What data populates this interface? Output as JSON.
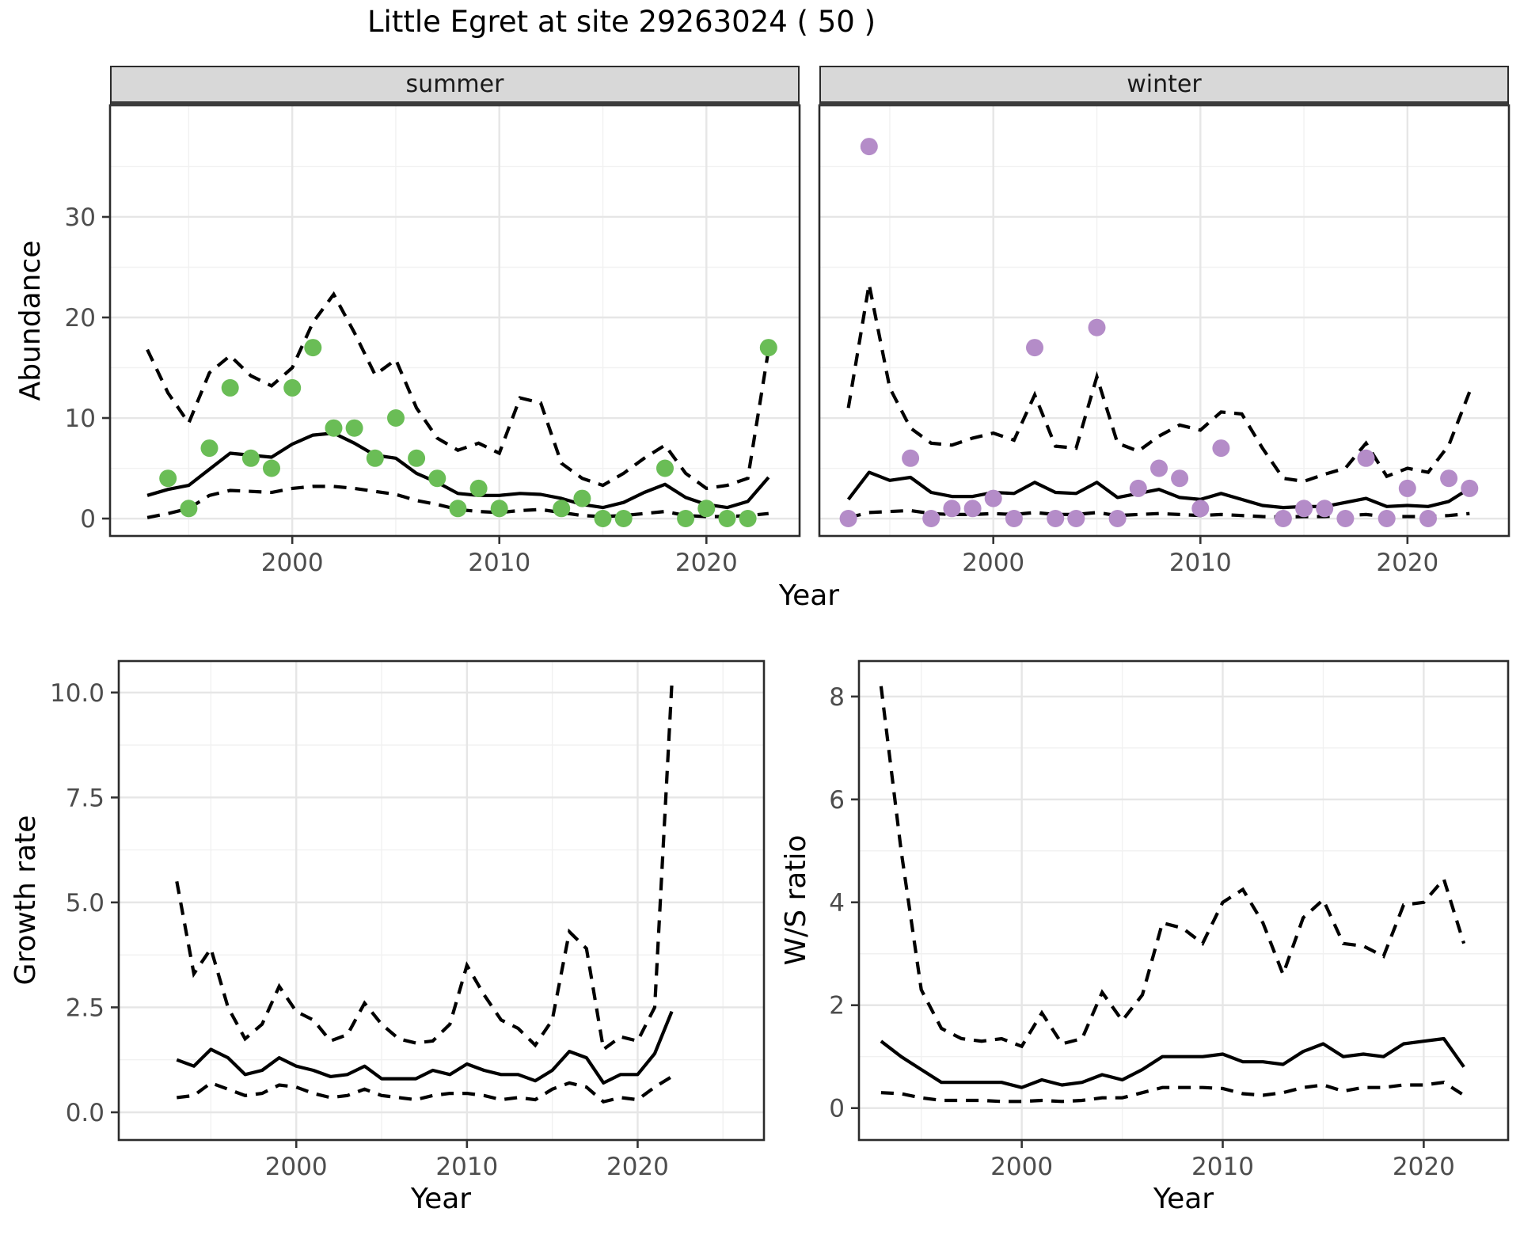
{
  "title": "Little Egret at site 29263024 ( 50 )",
  "labels": {
    "year": "Year",
    "abundance": "Abundance",
    "growth_rate": "Growth rate",
    "ws_ratio": "W/S ratio"
  },
  "facets": {
    "summer": "summer",
    "winter": "winter"
  },
  "colors": {
    "summer_point": "#6ABD56",
    "winter_point": "#B48CC8",
    "line": "#000000",
    "ci_line": "#000000",
    "strip_bg": "#D8D8D8",
    "panel_border": "#2b2b2b",
    "grid_major": "#E6E6E6",
    "grid_minor": "#F1F1F1",
    "tick_label": "#4d4d4d"
  },
  "chart_data": [
    {
      "id": "abundance-summer",
      "type": "line",
      "facet": "summer",
      "xlabel": "Year",
      "ylabel": "Abundance",
      "legend_position": "none",
      "grid": true,
      "xlim": [
        1991.2,
        2024.5
      ],
      "ylim": [
        -1.73,
        41.1
      ],
      "x_breaks": [
        2000,
        2010,
        2020
      ],
      "x_break_labels": [
        "2000",
        "2010",
        "2020"
      ],
      "y_breaks": [
        0,
        10,
        20,
        30
      ],
      "y_break_labels": [
        "0",
        "10",
        "20",
        "30"
      ],
      "years": [
        1993,
        1994,
        1995,
        1996,
        1997,
        1998,
        1999,
        2000,
        2001,
        2002,
        2003,
        2004,
        2005,
        2006,
        2007,
        2008,
        2009,
        2010,
        2011,
        2012,
        2013,
        2014,
        2015,
        2016,
        2017,
        2018,
        2019,
        2020,
        2021,
        2022,
        2023
      ],
      "fitted": [
        2.3,
        2.9,
        3.3,
        4.9,
        6.5,
        6.3,
        6.1,
        7.4,
        8.3,
        8.5,
        7.5,
        6.3,
        6.0,
        4.5,
        3.6,
        2.5,
        2.3,
        2.3,
        2.5,
        2.4,
        2.0,
        1.4,
        1.1,
        1.6,
        2.6,
        3.4,
        2.1,
        1.4,
        1.1,
        1.7,
        4.1
      ],
      "upper_ci": [
        16.8,
        12.5,
        9.5,
        14.5,
        16.2,
        14.2,
        13.2,
        15.0,
        19.5,
        22.3,
        18.5,
        14.3,
        15.8,
        11.0,
        8.0,
        6.8,
        7.5,
        6.5,
        12.0,
        11.5,
        5.5,
        4.0,
        3.3,
        4.5,
        6.0,
        7.3,
        4.5,
        3.0,
        3.3,
        4.0,
        16.8
      ],
      "lower_ci": [
        0.1,
        0.5,
        1.0,
        2.3,
        2.8,
        2.7,
        2.6,
        3.0,
        3.2,
        3.2,
        3.0,
        2.7,
        2.4,
        1.8,
        1.4,
        0.9,
        0.7,
        0.6,
        0.8,
        0.9,
        0.6,
        0.3,
        0.2,
        0.3,
        0.5,
        0.7,
        0.3,
        0.2,
        0.2,
        0.3,
        0.5
      ],
      "obs_years": [
        1994,
        1995,
        1996,
        1997,
        1998,
        1999,
        2000,
        2001,
        2002,
        2003,
        2004,
        2005,
        2006,
        2007,
        2008,
        2009,
        2010,
        2013,
        2014,
        2015,
        2016,
        2018,
        2019,
        2020,
        2021,
        2022,
        2023
      ],
      "obs_values": [
        4,
        1,
        7,
        13,
        6,
        5,
        13,
        17,
        9,
        9,
        6,
        10,
        6,
        4,
        1,
        3,
        1,
        1,
        2,
        0,
        0,
        5,
        0,
        1,
        0,
        0,
        17
      ],
      "point_color": "#6ABD56"
    },
    {
      "id": "abundance-winter",
      "type": "line",
      "facet": "winter",
      "xlabel": "Year",
      "ylabel": "Abundance",
      "legend_position": "none",
      "grid": true,
      "xlim": [
        1991.6,
        2024.9
      ],
      "ylim": [
        -1.73,
        41.1
      ],
      "x_breaks": [
        2000,
        2010,
        2020
      ],
      "x_break_labels": [
        "2000",
        "2010",
        "2020"
      ],
      "y_breaks": [
        0,
        10,
        20,
        30
      ],
      "y_break_labels": [
        "0",
        "10",
        "20",
        "30"
      ],
      "years": [
        1993,
        1994,
        1995,
        1996,
        1997,
        1998,
        1999,
        2000,
        2001,
        2002,
        2003,
        2004,
        2005,
        2006,
        2007,
        2008,
        2009,
        2010,
        2011,
        2012,
        2013,
        2014,
        2015,
        2016,
        2017,
        2018,
        2019,
        2020,
        2021,
        2022,
        2023
      ],
      "fitted": [
        1.9,
        4.6,
        3.8,
        4.1,
        2.6,
        2.2,
        2.2,
        2.6,
        2.5,
        3.6,
        2.6,
        2.5,
        3.6,
        2.1,
        2.5,
        2.9,
        2.1,
        1.9,
        2.5,
        1.9,
        1.3,
        1.1,
        1.2,
        1.2,
        1.6,
        2.0,
        1.2,
        1.3,
        1.2,
        1.7,
        3.0
      ],
      "upper_ci": [
        11.0,
        23.3,
        13.0,
        9.0,
        7.5,
        7.3,
        8.0,
        8.5,
        7.8,
        12.3,
        7.2,
        7.0,
        14.1,
        7.5,
        6.7,
        8.2,
        9.3,
        8.8,
        10.6,
        10.4,
        7.0,
        4.0,
        3.7,
        4.4,
        5.0,
        7.5,
        4.2,
        5.0,
        4.6,
        7.3,
        12.6
      ],
      "lower_ci": [
        0.1,
        0.6,
        0.7,
        0.8,
        0.5,
        0.4,
        0.4,
        0.5,
        0.4,
        0.6,
        0.4,
        0.4,
        0.6,
        0.3,
        0.4,
        0.5,
        0.4,
        0.3,
        0.4,
        0.3,
        0.2,
        0.15,
        0.2,
        0.2,
        0.3,
        0.4,
        0.2,
        0.2,
        0.2,
        0.3,
        0.5
      ],
      "obs_years": [
        1993,
        1994,
        1996,
        1997,
        1998,
        1999,
        2000,
        2001,
        2002,
        2003,
        2004,
        2005,
        2006,
        2007,
        2008,
        2009,
        2010,
        2011,
        2014,
        2015,
        2016,
        2017,
        2018,
        2019,
        2020,
        2021,
        2022,
        2023
      ],
      "obs_values": [
        0,
        37,
        6,
        0,
        1,
        1,
        2,
        0,
        17,
        0,
        0,
        19,
        0,
        3,
        5,
        4,
        1,
        7,
        0,
        1,
        1,
        0,
        6,
        0,
        3,
        0,
        4,
        3
      ],
      "point_color": "#B48CC8"
    },
    {
      "id": "growth-rate",
      "type": "line",
      "facet": null,
      "xlabel": "Year",
      "ylabel": "Growth rate",
      "legend_position": "none",
      "grid": true,
      "xlim": [
        1989.6,
        2027.4
      ],
      "ylim": [
        -0.66,
        10.75
      ],
      "x_breaks": [
        2000,
        2010,
        2020
      ],
      "x_break_labels": [
        "2000",
        "2010",
        "2020"
      ],
      "y_breaks": [
        0,
        2.5,
        5,
        7.5,
        10
      ],
      "y_break_labels": [
        "0.0",
        "2.5",
        "5.0",
        "7.5",
        "10.0"
      ],
      "years": [
        1993,
        1994,
        1995,
        1996,
        1997,
        1998,
        1999,
        2000,
        2001,
        2002,
        2003,
        2004,
        2005,
        2006,
        2007,
        2008,
        2009,
        2010,
        2011,
        2012,
        2013,
        2014,
        2015,
        2016,
        2017,
        2018,
        2019,
        2020,
        2021,
        2022
      ],
      "fitted": [
        1.25,
        1.1,
        1.5,
        1.3,
        0.9,
        1.0,
        1.3,
        1.1,
        1.0,
        0.85,
        0.9,
        1.1,
        0.8,
        0.8,
        0.8,
        1.0,
        0.9,
        1.15,
        1.0,
        0.9,
        0.9,
        0.75,
        1.0,
        1.45,
        1.3,
        0.7,
        0.9,
        0.9,
        1.4,
        2.4
      ],
      "upper_ci": [
        5.5,
        3.3,
        3.9,
        2.5,
        1.75,
        2.1,
        3.0,
        2.4,
        2.2,
        1.7,
        1.85,
        2.6,
        2.1,
        1.75,
        1.65,
        1.7,
        2.1,
        3.5,
        2.8,
        2.2,
        2.0,
        1.6,
        2.2,
        4.3,
        3.9,
        1.5,
        1.8,
        1.7,
        2.5,
        10.2
      ],
      "lower_ci": [
        0.35,
        0.4,
        0.7,
        0.55,
        0.4,
        0.45,
        0.65,
        0.6,
        0.45,
        0.35,
        0.4,
        0.55,
        0.4,
        0.35,
        0.3,
        0.4,
        0.45,
        0.45,
        0.4,
        0.3,
        0.35,
        0.3,
        0.55,
        0.7,
        0.6,
        0.25,
        0.35,
        0.3,
        0.6,
        0.85
      ],
      "obs_years": [],
      "obs_values": [],
      "point_color": null
    },
    {
      "id": "ws-ratio",
      "type": "line",
      "facet": null,
      "xlabel": "Year",
      "ylabel": "W/S ratio",
      "legend_position": "none",
      "grid": true,
      "xlim": [
        1991.9,
        2024.2
      ],
      "ylim": [
        -0.62,
        8.69
      ],
      "x_breaks": [
        2000,
        2010,
        2020
      ],
      "x_break_labels": [
        "2000",
        "2010",
        "2020"
      ],
      "y_breaks": [
        0,
        2,
        4,
        6,
        8
      ],
      "y_break_labels": [
        "0",
        "2",
        "4",
        "6",
        "8"
      ],
      "years": [
        1993,
        1994,
        1995,
        1996,
        1997,
        1998,
        1999,
        2000,
        2001,
        2002,
        2003,
        2004,
        2005,
        2006,
        2007,
        2008,
        2009,
        2010,
        2011,
        2012,
        2013,
        2014,
        2015,
        2016,
        2017,
        2018,
        2019,
        2020,
        2021,
        2022
      ],
      "fitted": [
        1.3,
        1.0,
        0.75,
        0.5,
        0.5,
        0.5,
        0.5,
        0.4,
        0.55,
        0.45,
        0.5,
        0.65,
        0.55,
        0.75,
        1.0,
        1.0,
        1.0,
        1.05,
        0.9,
        0.9,
        0.85,
        1.1,
        1.25,
        1.0,
        1.05,
        1.0,
        1.25,
        1.3,
        1.35,
        0.8
      ],
      "upper_ci": [
        8.2,
        5.0,
        2.3,
        1.55,
        1.35,
        1.3,
        1.35,
        1.2,
        1.85,
        1.25,
        1.35,
        2.25,
        1.7,
        2.2,
        3.6,
        3.5,
        3.2,
        4.0,
        4.25,
        3.6,
        2.6,
        3.7,
        4.05,
        3.2,
        3.15,
        2.95,
        3.95,
        4.0,
        4.45,
        3.2
      ],
      "lower_ci": [
        0.3,
        0.28,
        0.2,
        0.15,
        0.15,
        0.15,
        0.13,
        0.13,
        0.15,
        0.13,
        0.15,
        0.2,
        0.2,
        0.3,
        0.4,
        0.4,
        0.4,
        0.38,
        0.28,
        0.25,
        0.3,
        0.4,
        0.45,
        0.33,
        0.4,
        0.4,
        0.45,
        0.45,
        0.5,
        0.25
      ],
      "obs_years": [],
      "obs_values": [],
      "point_color": null
    }
  ]
}
